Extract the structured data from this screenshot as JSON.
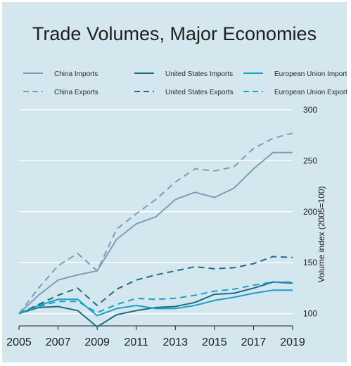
{
  "chart_data": {
    "type": "line",
    "title": "Trade Volumes, Major Economies",
    "xlabel": "",
    "ylabel": "Volume index (2005=100)",
    "x": [
      2005,
      2006,
      2007,
      2008,
      2009,
      2010,
      2011,
      2012,
      2013,
      2014,
      2015,
      2016,
      2017,
      2018,
      2019
    ],
    "x_ticks": [
      2005,
      2007,
      2009,
      2011,
      2013,
      2015,
      2017,
      2019
    ],
    "y_ticks": [
      100,
      150,
      200,
      250,
      300
    ],
    "ylim": [
      88,
      302
    ],
    "xlim": [
      2005,
      2019
    ],
    "grid": "horizontal",
    "legend_position": "top",
    "series": [
      {
        "name": "China Imports",
        "color": "#7a9fb4",
        "dash": "solid",
        "values": [
          100,
          118,
          133,
          138,
          142,
          173,
          188,
          195,
          212,
          219,
          214,
          223,
          242,
          258,
          258
        ]
      },
      {
        "name": "United States Imports",
        "color": "#1f6d83",
        "dash": "solid",
        "values": [
          100,
          106,
          107,
          103,
          87,
          99,
          103,
          106,
          107,
          111,
          119,
          120,
          125,
          131,
          130
        ]
      },
      {
        "name": "European Union Imports",
        "color": "#1ba1c9",
        "dash": "solid",
        "values": [
          100,
          108,
          114,
          114,
          98,
          105,
          108,
          105,
          105,
          108,
          113,
          116,
          120,
          123,
          123
        ]
      },
      {
        "name": "China Exports",
        "color": "#7a9fb4",
        "dash": "dashed",
        "values": [
          100,
          125,
          147,
          159,
          142,
          183,
          198,
          212,
          229,
          242,
          240,
          244,
          262,
          272,
          277
        ]
      },
      {
        "name": "United States Exports",
        "color": "#1f6d83",
        "dash": "dashed",
        "values": [
          100,
          109,
          118,
          125,
          108,
          124,
          133,
          138,
          142,
          146,
          144,
          145,
          149,
          156,
          155
        ]
      },
      {
        "name": "European Union Exports",
        "color": "#1ba1c9",
        "dash": "dashed",
        "values": [
          100,
          107,
          112,
          112,
          101,
          109,
          115,
          114,
          115,
          118,
          122,
          124,
          128,
          131,
          131
        ]
      }
    ]
  }
}
